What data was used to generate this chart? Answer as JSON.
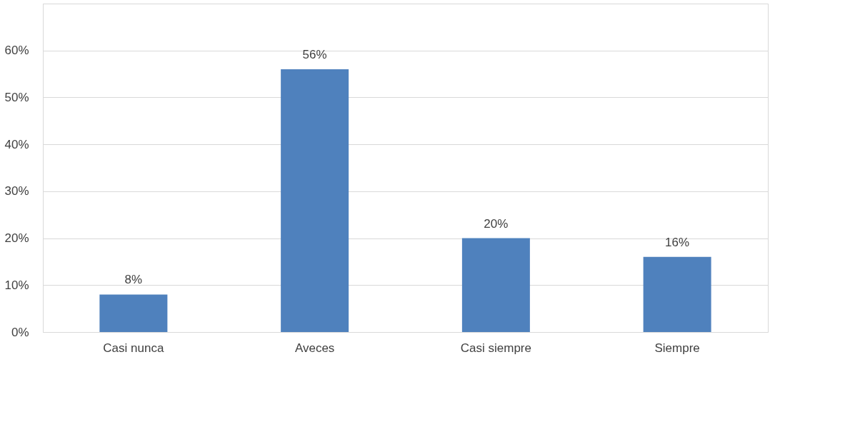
{
  "chart_data": {
    "type": "bar",
    "categories": [
      "Casi nunca",
      "Aveces",
      "Casi siempre",
      "Siempre"
    ],
    "values": [
      8,
      56,
      20,
      16
    ],
    "value_labels": [
      "8%",
      "56%",
      "20%",
      "16%"
    ],
    "color": "#4f81bd",
    "ylim": [
      0,
      70
    ],
    "yticks": [
      {
        "value": 0,
        "label": "0%"
      },
      {
        "value": 10,
        "label": "10%"
      },
      {
        "value": 20,
        "label": "20%"
      },
      {
        "value": 30,
        "label": "30%"
      },
      {
        "value": 40,
        "label": "40%"
      },
      {
        "value": 50,
        "label": "50%"
      },
      {
        "value": 60,
        "label": "60%"
      },
      {
        "value": 70,
        "label": null
      }
    ],
    "grid": "y"
  }
}
